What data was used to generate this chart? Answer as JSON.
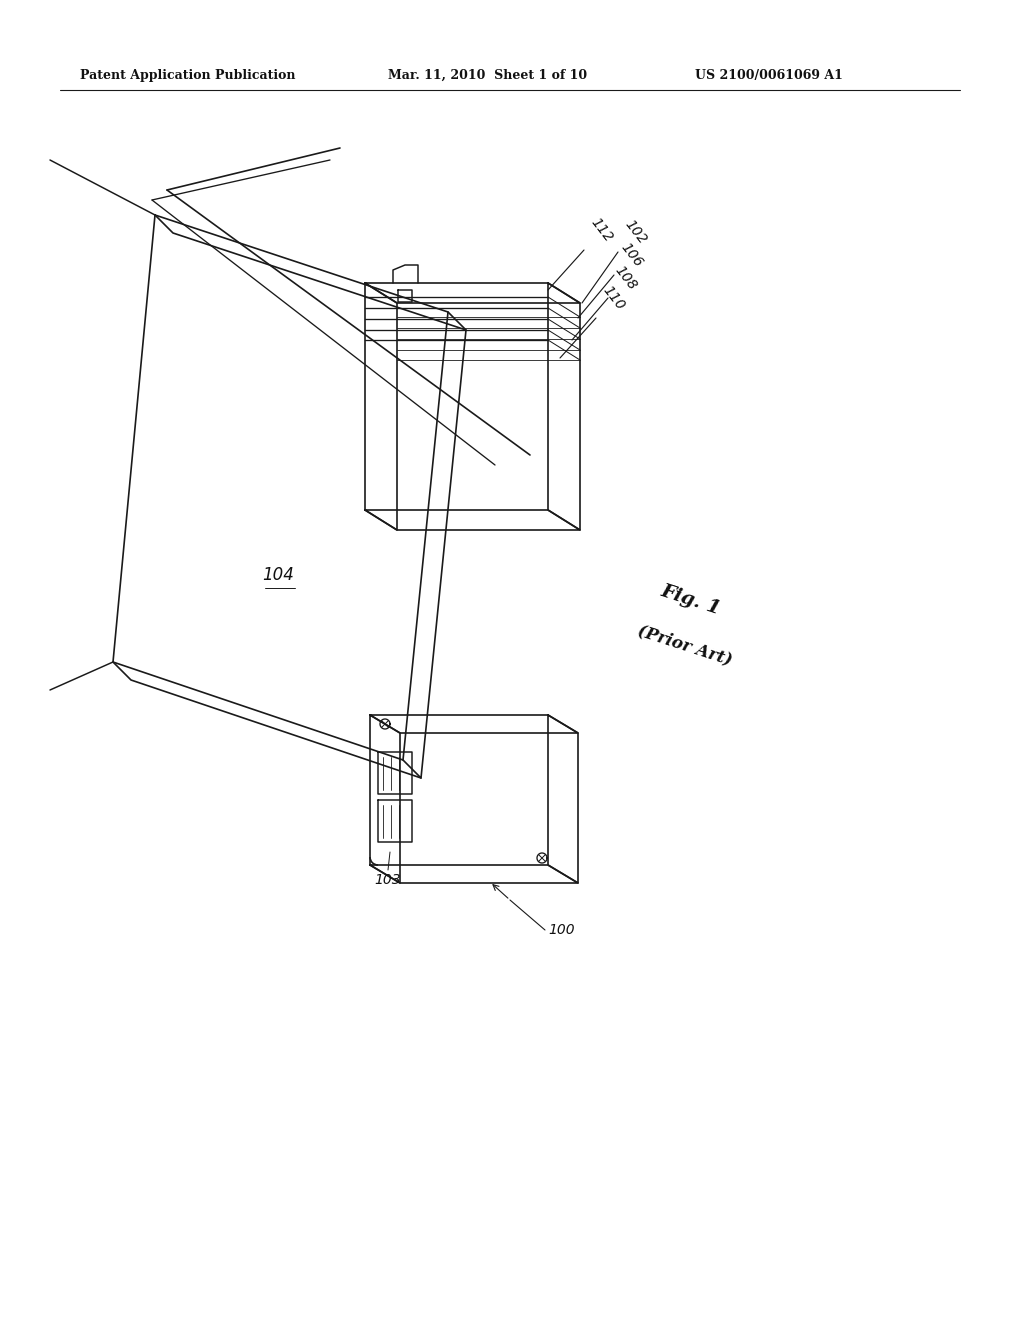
{
  "background_color": "#ffffff",
  "header_left": "Patent Application Publication",
  "header_center": "Mar. 11, 2010  Sheet 1 of 10",
  "header_right": "US 2100/0061069 A1",
  "fig_label": "Fig. 1",
  "fig_sublabel": "(Prior Art)",
  "label_100": "100",
  "label_102": "102",
  "label_103": "103",
  "label_104": "104",
  "label_106": "106",
  "label_108": "108",
  "label_110": "110",
  "label_112": "112",
  "line_color": "#1a1a1a",
  "line_width": 1.2
}
